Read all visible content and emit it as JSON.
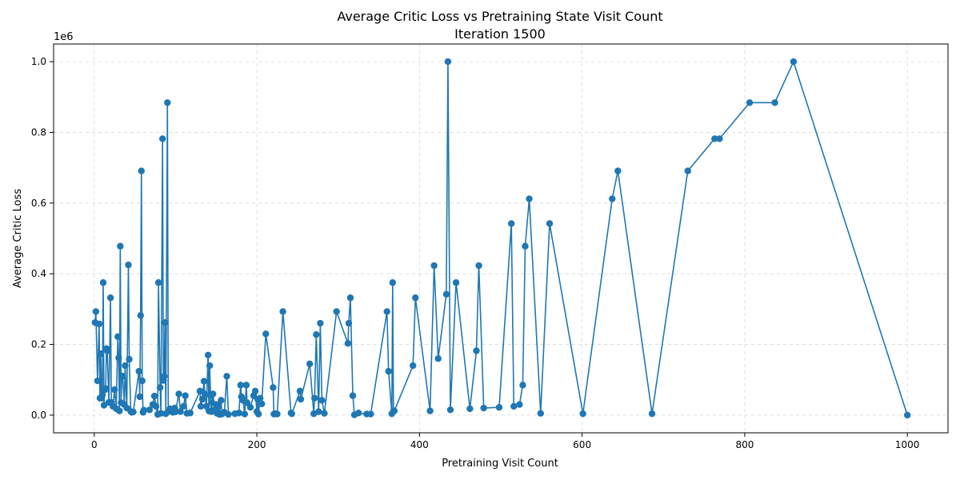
{
  "chart_data": {
    "type": "line",
    "title": "Average Critic Loss vs Pretraining State Visit Count",
    "subtitle": "Iteration 1500",
    "xlabel": "Pretraining Visit Count",
    "ylabel": "Average Critic Loss",
    "y_multiplier_label": "1e6",
    "xlim": [
      -50,
      1050
    ],
    "ylim": [
      -0.05,
      1.05
    ],
    "x_ticks": [
      0,
      200,
      400,
      600,
      800,
      1000
    ],
    "x_tick_labels": [
      "0",
      "200",
      "400",
      "600",
      "800",
      "1000"
    ],
    "y_ticks": [
      0.0,
      0.2,
      0.4,
      0.6,
      0.8,
      1.0
    ],
    "y_tick_labels": [
      "0.0",
      "0.2",
      "0.4",
      "0.6",
      "0.8",
      "1.0"
    ],
    "grid": true,
    "marker": "circle",
    "color": "#1f77b4",
    "series": [
      {
        "x": [
          1,
          2,
          4,
          6,
          7,
          8,
          9,
          10,
          11,
          12,
          13,
          14,
          15,
          16,
          18,
          20,
          21,
          23,
          25,
          27,
          29,
          30,
          31,
          32,
          33,
          34,
          35,
          37,
          38,
          40,
          42,
          43,
          45,
          46,
          48,
          55,
          56,
          57,
          58,
          59,
          60,
          61,
          68,
          72,
          74,
          76,
          78,
          79,
          81,
          82,
          84,
          85,
          86,
          87,
          88,
          90,
          91,
          93,
          95,
          97,
          99,
          100,
          104,
          106,
          110,
          112,
          114,
          118,
          130,
          131,
          133,
          135,
          136,
          138,
          140,
          141,
          142,
          143,
          144,
          145,
          146,
          148,
          150,
          151,
          153,
          154,
          156,
          157,
          158,
          160,
          163,
          165,
          173,
          178,
          180,
          181,
          183,
          185,
          187,
          188,
          192,
          196,
          198,
          200,
          201,
          202,
          204,
          206,
          211,
          220,
          221,
          222,
          223,
          225,
          232,
          242,
          243,
          253,
          254,
          265,
          270,
          271,
          273,
          276,
          278,
          280,
          283,
          298,
          312,
          313,
          315,
          318,
          320,
          325,
          335,
          340,
          360,
          362,
          366,
          367,
          368,
          369,
          392,
          395,
          413,
          418,
          423,
          433,
          435,
          438,
          445,
          462,
          470,
          473,
          479,
          498,
          513,
          516,
          523,
          527,
          530,
          535,
          549,
          560,
          601,
          637,
          644,
          686,
          730,
          763,
          769,
          806,
          837,
          860,
          1000
        ],
        "values": [
          0.262,
          0.293,
          0.097,
          0.258,
          0.048,
          0.174,
          0.048,
          0.057,
          0.375,
          0.028,
          0.072,
          0.075,
          0.188,
          0.182,
          0.036,
          0.332,
          0.036,
          0.025,
          0.072,
          0.018,
          0.222,
          0.162,
          0.012,
          0.478,
          0.035,
          0.111,
          0.11,
          0.03,
          0.14,
          0.02,
          0.425,
          0.158,
          0.01,
          0.008,
          0.009,
          0.124,
          0.052,
          0.282,
          0.691,
          0.097,
          0.008,
          0.014,
          0.015,
          0.03,
          0.054,
          0.025,
          0.002,
          0.375,
          0.078,
          0.005,
          0.782,
          0.098,
          0.11,
          0.262,
          0.004,
          0.884,
          0.01,
          0.018,
          0.014,
          0.008,
          0.02,
          0.01,
          0.06,
          0.01,
          0.025,
          0.055,
          0.005,
          0.006,
          0.068,
          0.025,
          0.045,
          0.096,
          0.06,
          0.025,
          0.17,
          0.012,
          0.14,
          0.055,
          0.01,
          0.035,
          0.06,
          0.015,
          0.03,
          0.005,
          0.028,
          0.002,
          0.042,
          0.003,
          0.005,
          0.008,
          0.11,
          0.002,
          0.004,
          0.006,
          0.085,
          0.052,
          0.042,
          0.003,
          0.085,
          0.035,
          0.022,
          0.055,
          0.068,
          0.01,
          0.045,
          0.003,
          0.048,
          0.032,
          0.23,
          0.078,
          0.003,
          0.003,
          0.004,
          0.003,
          0.293,
          0.006,
          0.004,
          0.068,
          0.045,
          0.145,
          0.004,
          0.048,
          0.228,
          0.01,
          0.26,
          0.042,
          0.005,
          0.293,
          0.203,
          0.26,
          0.332,
          0.055,
          0.001,
          0.006,
          0.003,
          0.003,
          0.293,
          0.124,
          0.004,
          0.375,
          0.012,
          0.012,
          0.14,
          0.332,
          0.012,
          0.423,
          0.16,
          0.342,
          1.0,
          0.015,
          0.375,
          0.018,
          0.182,
          0.423,
          0.02,
          0.022,
          0.542,
          0.025,
          0.03,
          0.085,
          0.478,
          0.612,
          0.005,
          0.542,
          0.004,
          0.612,
          0.691,
          0.004,
          0.691,
          0.782,
          0.782,
          0.884,
          0.884,
          1.0,
          0.0
        ]
      }
    ]
  }
}
